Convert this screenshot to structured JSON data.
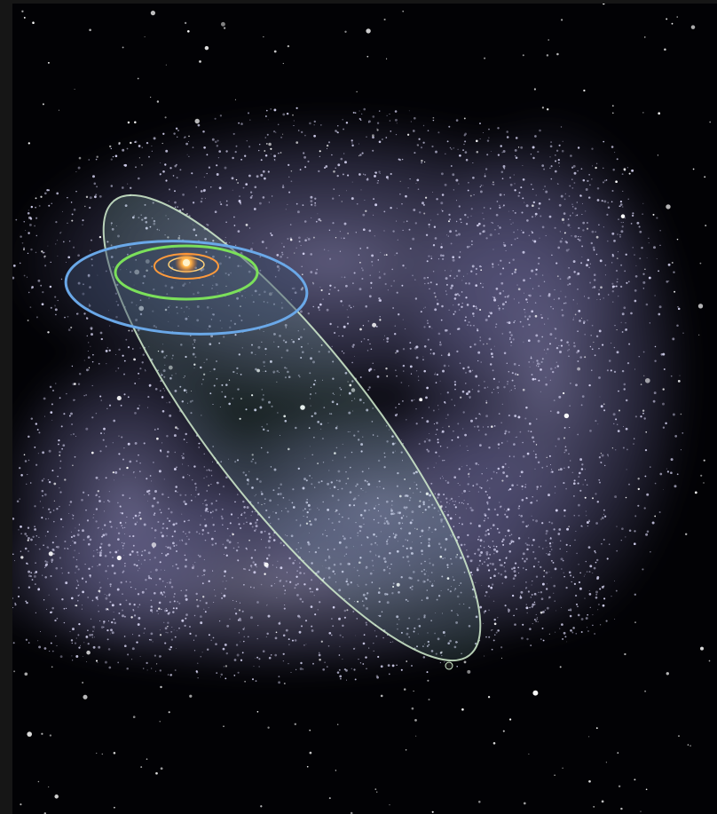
{
  "scene": {
    "subject": "",
    "colors": {
      "page_frame": "#161616",
      "space": "#020205",
      "cloud_haze": "#8c88c8",
      "cloud_particles": "#d8d6f4",
      "star": "#ffffff",
      "sun": "#ffb347",
      "orbit_elongated": "#d4f0d0",
      "orbit_disk": "#6aa8e8",
      "orbit_green": "#7be05a",
      "orbit_orange": "#ff9a3c",
      "orbit_inner": "#ffd27a"
    },
    "elements": [
      "background-space",
      "oort-cloud",
      "background-stars",
      "elongated-orbit",
      "disk-orbit",
      "green-orbit",
      "orange-orbit",
      "inner-orbit",
      "sun",
      "orbiting-body"
    ]
  }
}
